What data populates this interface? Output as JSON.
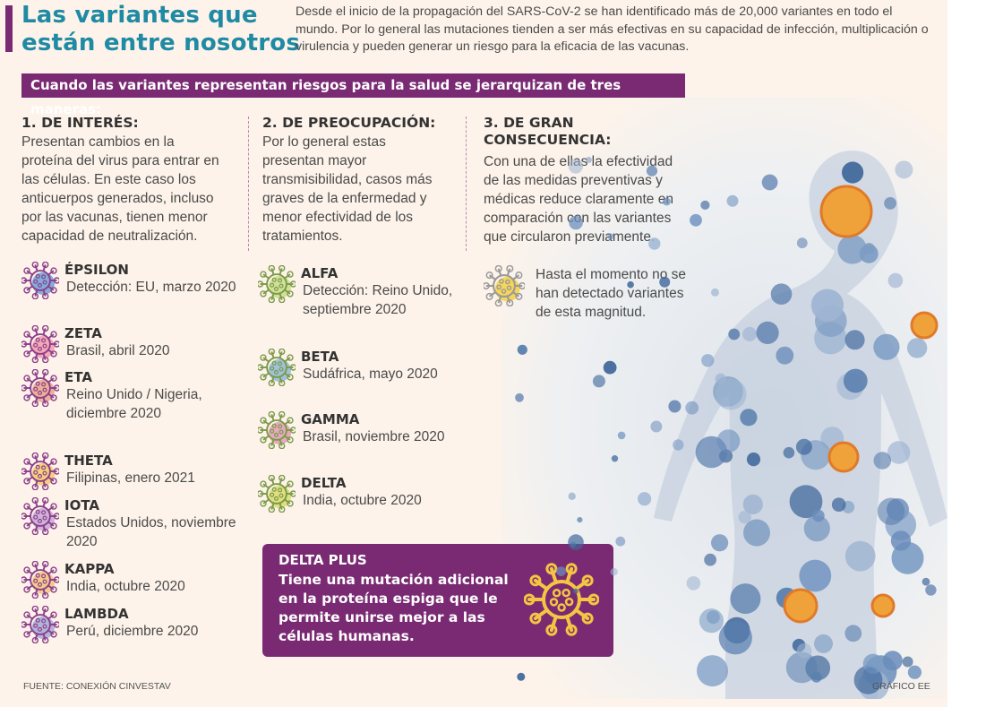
{
  "title": {
    "line1": "Las variantes que",
    "line2": "están entre nosotros"
  },
  "intro": "Desde el inicio de la propagación del SARS-CoV-2 se han identificado más de 20,000 variantes en todo el mundo. Por lo general las mutaciones tienden a ser más efectivas en su capacidad de infección, multiplicación o virulencia y pueden generar un riesgo para la eficacia de las vacunas.",
  "banner": "Cuando las variantes representan riesgos para la salud se jerarquizan de tres maneras:",
  "columns": [
    {
      "title": "1. DE INTERÉS:",
      "description": "Presentan cambios en la proteína del virus para entrar en las células. En este caso los anticuerpos generados, incluso por las vacunas, tienen menor capacidad de neutralización.",
      "variants": [
        {
          "name": "ÉPSILON",
          "detail": "Detección: EU, marzo 2020",
          "icon": "virus-icon",
          "color": "#6f9fd8"
        },
        {
          "name": "ZETA",
          "detail": "Brasil, abril 2020",
          "icon": "virus-icon",
          "color": "#f29aae"
        },
        {
          "name": "ETA",
          "detail": "Reino Unido / Nigeria, diciembre 2020",
          "icon": "virus-icon",
          "color": "#e7a38c"
        },
        {
          "name": "THETA",
          "detail": "Filipinas, enero 2021",
          "icon": "virus-icon",
          "color": "#f3c86b"
        },
        {
          "name": "IOTA",
          "detail": "Estados Unidos, noviembre 2020",
          "icon": "virus-icon",
          "color": "#c7a6d6"
        },
        {
          "name": "KAPPA",
          "detail": "India, octubre 2020",
          "icon": "virus-icon",
          "color": "#f1c27a"
        },
        {
          "name": "LAMBDA",
          "detail": "Perú, diciembre 2020",
          "icon": "virus-icon",
          "color": "#a6a8d8"
        }
      ]
    },
    {
      "title": "2. DE PREOCUPACIÓN:",
      "description": "Por lo general estas presentan mayor transmisibilidad, casos más graves de la enfermedad y menor efectividad de los tratamientos.",
      "variants": [
        {
          "name": "ALFA",
          "detail": "Detección: Reino Unido, septiembre 2020",
          "icon": "virus-icon",
          "color": "#c9dc8a"
        },
        {
          "name": "BETA",
          "detail": "Sudáfrica, mayo 2020",
          "icon": "virus-icon",
          "color": "#8fb8d8"
        },
        {
          "name": "GAMMA",
          "detail": "Brasil, noviembre 2020",
          "icon": "virus-icon",
          "color": "#e29bb5"
        },
        {
          "name": "DELTA",
          "detail": "India, octubre 2020",
          "icon": "virus-icon",
          "color": "#d9d96f"
        }
      ]
    },
    {
      "title_line1": "3. DE GRAN",
      "title_line2": "CONSECUENCIA:",
      "description": "Con una de ellas la efectividad de las medidas preventivas y médicas reduce claramente en comparación con las variantes que circularon previamente.",
      "note": "Hasta el momento no se han detectado variantes de esta magnitud.",
      "note_icon": "virus-icon",
      "note_color": "#f4d03f"
    }
  ],
  "delta_plus": {
    "title": "DELTA PLUS",
    "text": "Tiene una mutación adicional en la proteína espiga que le permite unirse mejor a las células humanas.",
    "icon": "virus-icon",
    "icon_color": "#f4c542"
  },
  "source": "FUENTE: CONEXIÓN CINVESTAV",
  "credit": "GRÁFICO EE",
  "colors": {
    "accent": "#7a2a73",
    "title": "#1f8aa3",
    "background": "#fdf3ea"
  }
}
